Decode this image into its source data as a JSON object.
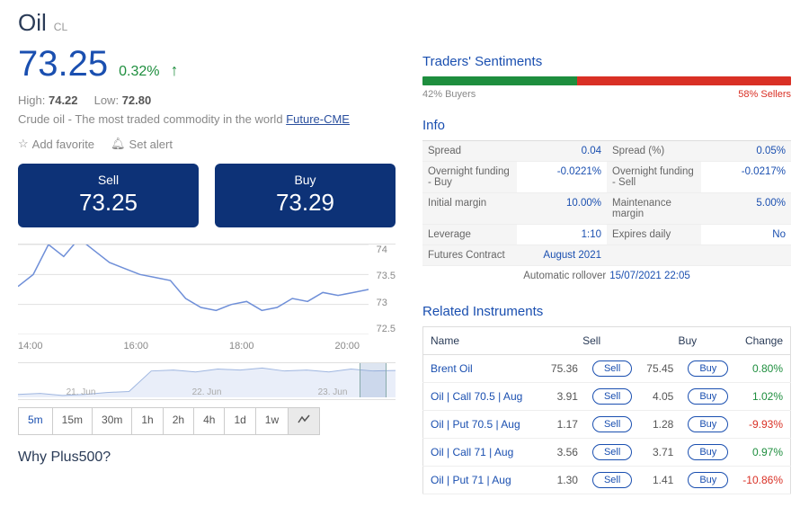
{
  "colors": {
    "primary": "#1a4fb0",
    "dark_primary": "#0d3277",
    "green": "#1e8e3e",
    "red": "#d93025",
    "text_muted": "#888888"
  },
  "header": {
    "name": "Oil",
    "symbol": "CL",
    "price": "73.25",
    "change_pct": "0.32%",
    "change_direction": "up",
    "high_label": "High:",
    "high": "74.22",
    "low_label": "Low:",
    "low": "72.80",
    "description": "Crude oil - The most traded commodity in the world",
    "description_link_text": "Future-CME"
  },
  "actions": {
    "favorite_label": "Add favorite",
    "alert_label": "Set alert"
  },
  "order_buttons": {
    "sell_label": "Sell",
    "sell_price": "73.25",
    "buy_label": "Buy",
    "buy_price": "73.29"
  },
  "main_chart": {
    "type": "line",
    "line_color": "#6f8fd8",
    "background_color": "#ffffff",
    "grid_color": "#e0e0e0",
    "ylim": [
      72.5,
      74
    ],
    "yticks": [
      "74",
      "73.5",
      "73",
      "72.5"
    ],
    "xticks": [
      "14:00",
      "16:00",
      "18:00",
      "20:00"
    ],
    "series": [
      73.3,
      73.5,
      74.0,
      73.8,
      74.1,
      73.9,
      73.7,
      73.6,
      73.5,
      73.45,
      73.4,
      73.1,
      72.95,
      72.9,
      73.0,
      73.05,
      72.9,
      72.95,
      73.1,
      73.05,
      73.2,
      73.15,
      73.2,
      73.25
    ]
  },
  "mini_chart": {
    "type": "area",
    "line_color": "#9fb6e0",
    "fill_color": "#e9eef9",
    "xticks": [
      "21. Jun",
      "22. Jun",
      "23. Jun"
    ],
    "series": [
      70.8,
      70.9,
      70.7,
      70.8,
      71.0,
      71.1,
      73.2,
      73.3,
      73.1,
      73.4,
      73.3,
      73.5,
      73.2,
      73.3,
      73.1,
      73.4,
      73.2,
      73.25
    ],
    "ylim": [
      70.5,
      74
    ]
  },
  "timeframes": {
    "items": [
      "5m",
      "15m",
      "30m",
      "1h",
      "2h",
      "4h",
      "1d",
      "1w"
    ],
    "active": "5m"
  },
  "why_heading": "Why Plus500?",
  "sentiment": {
    "title": "Traders' Sentiments",
    "buyers_pct": 42,
    "sellers_pct": 58,
    "buyers_label": "42% Buyers",
    "sellers_label": "58% Sellers"
  },
  "info": {
    "title": "Info",
    "rows": [
      {
        "k1": "Spread",
        "v1": "0.04",
        "k2": "Spread (%)",
        "v2": "0.05%"
      },
      {
        "k1": "Overnight funding - Buy",
        "v1": "-0.0221%",
        "k2": "Overnight funding - Sell",
        "v2": "-0.0217%"
      },
      {
        "k1": "Initial margin",
        "v1": "10.00%",
        "k2": "Maintenance margin",
        "v2": "5.00%"
      },
      {
        "k1": "Leverage",
        "v1": "1:10",
        "k2": "Expires daily",
        "v2": "No"
      },
      {
        "k1": "Futures Contract",
        "v1": "August 2021",
        "k2": "",
        "v2": ""
      }
    ],
    "rollover_label": "Automatic rollover",
    "rollover_value": "15/07/2021 22:05"
  },
  "related": {
    "title": "Related Instruments",
    "columns": [
      "Name",
      "Sell",
      "Buy",
      "Change"
    ],
    "sell_btn_label": "Sell",
    "buy_btn_label": "Buy",
    "rows": [
      {
        "name": "Brent Oil",
        "sell": "75.36",
        "buy": "75.45",
        "change": "0.80%",
        "dir": "pos"
      },
      {
        "name": "Oil | Call 70.5 | Aug",
        "sell": "3.91",
        "buy": "4.05",
        "change": "1.02%",
        "dir": "pos"
      },
      {
        "name": "Oil | Put 70.5 | Aug",
        "sell": "1.17",
        "buy": "1.28",
        "change": "-9.93%",
        "dir": "neg"
      },
      {
        "name": "Oil | Call 71 | Aug",
        "sell": "3.56",
        "buy": "3.71",
        "change": "0.97%",
        "dir": "pos"
      },
      {
        "name": "Oil | Put 71 | Aug",
        "sell": "1.30",
        "buy": "1.41",
        "change": "-10.86%",
        "dir": "neg"
      }
    ]
  }
}
